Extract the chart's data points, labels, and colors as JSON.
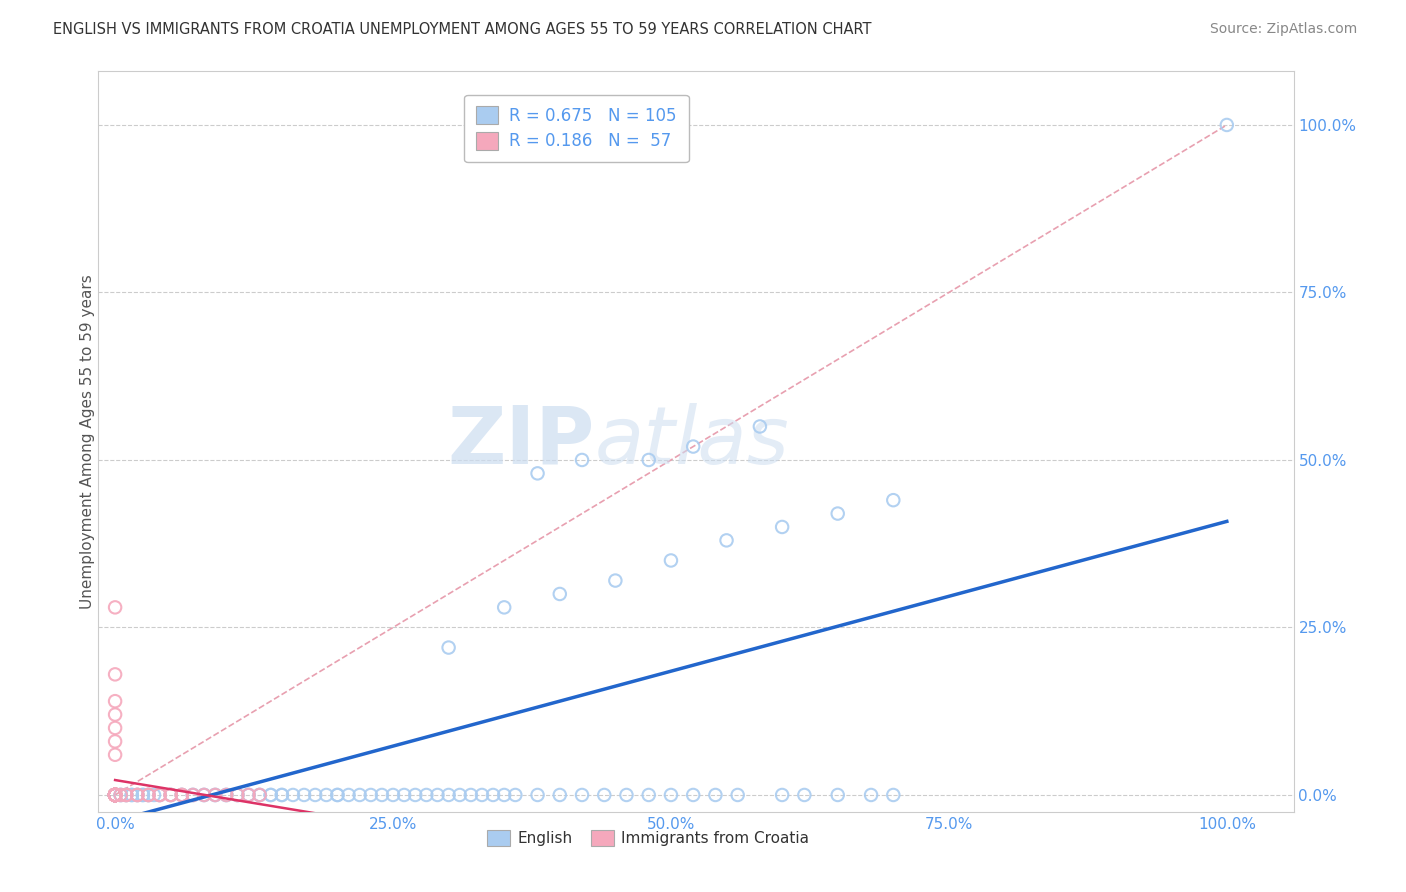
{
  "title": "ENGLISH VS IMMIGRANTS FROM CROATIA UNEMPLOYMENT AMONG AGES 55 TO 59 YEARS CORRELATION CHART",
  "source": "Source: ZipAtlas.com",
  "ylabel": "Unemployment Among Ages 55 to 59 years",
  "R_english": 0.675,
  "N_english": 105,
  "R_croatia": 0.186,
  "N_croatia": 57,
  "english_color": "#aaccf0",
  "english_edge_color": "#7aaad8",
  "croatia_color": "#f5a8bc",
  "croatia_edge_color": "#e07090",
  "trendline_english_color": "#2266cc",
  "trendline_croatia_color": "#dd3366",
  "diagonal_color": "#e8a0b0",
  "background_color": "#ffffff",
  "grid_color": "#cccccc",
  "label_color": "#5599ee",
  "axis_color": "#cccccc",
  "ylabel_color": "#555555",
  "watermark_zip": "ZIP",
  "watermark_atlas": "atlas",
  "ytick_labels": [
    "0.0%",
    "25.0%",
    "50.0%",
    "75.0%",
    "100.0%"
  ],
  "ytick_values": [
    0,
    0.25,
    0.5,
    0.75,
    1.0
  ],
  "xtick_labels": [
    "0.0%",
    "25.0%",
    "50.0%",
    "75.0%",
    "100.0%"
  ],
  "xtick_values": [
    0,
    0.25,
    0.5,
    0.75,
    1.0
  ],
  "eng_x": [
    0.0,
    0.0,
    0.0,
    0.0,
    0.0,
    0.0,
    0.0,
    0.0,
    0.0,
    0.0,
    0.0,
    0.0,
    0.0,
    0.0,
    0.0,
    0.0,
    0.005,
    0.005,
    0.01,
    0.01,
    0.015,
    0.015,
    0.02,
    0.02,
    0.025,
    0.025,
    0.03,
    0.03,
    0.035,
    0.04,
    0.04,
    0.05,
    0.05,
    0.06,
    0.06,
    0.07,
    0.07,
    0.08,
    0.08,
    0.09,
    0.09,
    0.1,
    0.1,
    0.11,
    0.11,
    0.12,
    0.12,
    0.13,
    0.13,
    0.14,
    0.14,
    0.15,
    0.15,
    0.16,
    0.17,
    0.18,
    0.19,
    0.2,
    0.2,
    0.21,
    0.22,
    0.23,
    0.24,
    0.25,
    0.26,
    0.27,
    0.28,
    0.29,
    0.3,
    0.31,
    0.32,
    0.33,
    0.34,
    0.35,
    0.36,
    0.38,
    0.4,
    0.42,
    0.44,
    0.46,
    0.48,
    0.5,
    0.52,
    0.54,
    0.56,
    0.6,
    0.62,
    0.65,
    0.68,
    0.7,
    0.3,
    0.35,
    0.4,
    0.45,
    0.5,
    0.55,
    0.6,
    0.65,
    0.7,
    0.38,
    0.42,
    0.48,
    0.52,
    0.58,
    1.0
  ],
  "eng_y": [
    0.0,
    0.0,
    0.0,
    0.0,
    0.0,
    0.0,
    0.0,
    0.0,
    0.0,
    0.0,
    0.0,
    0.0,
    0.0,
    0.0,
    0.0,
    0.0,
    0.0,
    0.0,
    0.0,
    0.0,
    0.0,
    0.0,
    0.0,
    0.0,
    0.0,
    0.0,
    0.0,
    0.0,
    0.0,
    0.0,
    0.0,
    0.0,
    0.0,
    0.0,
    0.0,
    0.0,
    0.0,
    0.0,
    0.0,
    0.0,
    0.0,
    0.0,
    0.0,
    0.0,
    0.0,
    0.0,
    0.0,
    0.0,
    0.0,
    0.0,
    0.0,
    0.0,
    0.0,
    0.0,
    0.0,
    0.0,
    0.0,
    0.0,
    0.0,
    0.0,
    0.0,
    0.0,
    0.0,
    0.0,
    0.0,
    0.0,
    0.0,
    0.0,
    0.0,
    0.0,
    0.0,
    0.0,
    0.0,
    0.0,
    0.0,
    0.0,
    0.0,
    0.0,
    0.0,
    0.0,
    0.0,
    0.0,
    0.0,
    0.0,
    0.0,
    0.0,
    0.0,
    0.0,
    0.0,
    0.0,
    0.22,
    0.28,
    0.3,
    0.32,
    0.35,
    0.38,
    0.4,
    0.42,
    0.44,
    0.48,
    0.5,
    0.5,
    0.52,
    0.55,
    1.0
  ],
  "cro_x": [
    0.0,
    0.0,
    0.0,
    0.0,
    0.0,
    0.0,
    0.0,
    0.0,
    0.0,
    0.0,
    0.0,
    0.0,
    0.0,
    0.0,
    0.0,
    0.0,
    0.0,
    0.0,
    0.0,
    0.0,
    0.0,
    0.0,
    0.0,
    0.0,
    0.0,
    0.0,
    0.0,
    0.0,
    0.0,
    0.0,
    0.005,
    0.01,
    0.01,
    0.02,
    0.02,
    0.03,
    0.03,
    0.04,
    0.04,
    0.05,
    0.05,
    0.06,
    0.06,
    0.07,
    0.08,
    0.09,
    0.1,
    0.11,
    0.12,
    0.13,
    0.0,
    0.0,
    0.0,
    0.0,
    0.0,
    0.0,
    0.0
  ],
  "cro_y": [
    0.0,
    0.0,
    0.0,
    0.0,
    0.0,
    0.0,
    0.0,
    0.0,
    0.0,
    0.0,
    0.0,
    0.0,
    0.0,
    0.0,
    0.0,
    0.0,
    0.0,
    0.0,
    0.0,
    0.0,
    0.0,
    0.0,
    0.0,
    0.0,
    0.0,
    0.0,
    0.0,
    0.0,
    0.0,
    0.0,
    0.0,
    0.0,
    0.0,
    0.0,
    0.0,
    0.0,
    0.0,
    0.0,
    0.0,
    0.0,
    0.0,
    0.0,
    0.0,
    0.0,
    0.0,
    0.0,
    0.0,
    0.0,
    0.0,
    0.0,
    0.06,
    0.08,
    0.1,
    0.12,
    0.14,
    0.18,
    0.28
  ]
}
